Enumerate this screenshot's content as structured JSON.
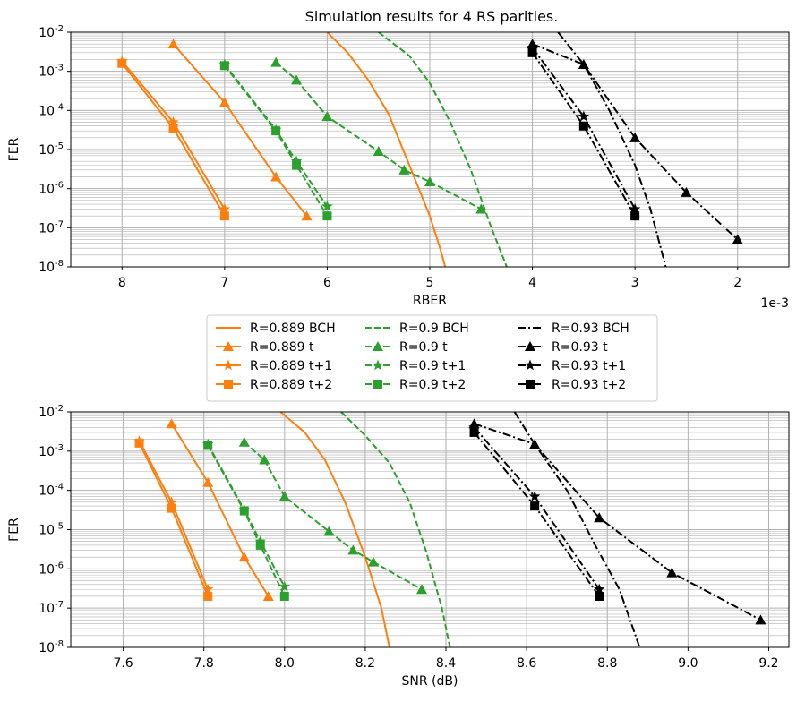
{
  "title": "Simulation results for 4 RS parities.",
  "colors": {
    "orange": "#ff7f0e",
    "green": "#2ca02c",
    "black": "#000000",
    "grid": "#b0b0b0"
  },
  "legend": {
    "placement": "between-panels",
    "entries": [
      {
        "label": "R=0.889 BCH",
        "color": "#ff7f0e",
        "dash": "solid",
        "marker": "none"
      },
      {
        "label": "R=0.889 t",
        "color": "#ff7f0e",
        "dash": "solid",
        "marker": "triangle"
      },
      {
        "label": "R=0.889 t+1",
        "color": "#ff7f0e",
        "dash": "solid",
        "marker": "star"
      },
      {
        "label": "R=0.889 t+2",
        "color": "#ff7f0e",
        "dash": "solid",
        "marker": "square"
      },
      {
        "label": "R=0.9 BCH",
        "color": "#2ca02c",
        "dash": "dashed",
        "marker": "none"
      },
      {
        "label": "R=0.9 t",
        "color": "#2ca02c",
        "dash": "dashed",
        "marker": "triangle"
      },
      {
        "label": "R=0.9 t+1",
        "color": "#2ca02c",
        "dash": "dashed",
        "marker": "star"
      },
      {
        "label": "R=0.9 t+2",
        "color": "#2ca02c",
        "dash": "dashed",
        "marker": "square"
      },
      {
        "label": "R=0.93 BCH",
        "color": "#000000",
        "dash": "dashdot",
        "marker": "none"
      },
      {
        "label": "R=0.93 t",
        "color": "#000000",
        "dash": "dashdot",
        "marker": "triangle"
      },
      {
        "label": "R=0.93 t+1",
        "color": "#000000",
        "dash": "dashdot",
        "marker": "star"
      },
      {
        "label": "R=0.93 t+2",
        "color": "#000000",
        "dash": "dashdot",
        "marker": "square"
      }
    ]
  },
  "chart_data": [
    {
      "type": "line",
      "xlabel": "RBER",
      "ylabel": "FER",
      "x_offset_text": "1e-3",
      "x_scale_note": "x tick values are in units of 1e-3",
      "xlim": [
        8.5,
        1.5
      ],
      "x_inverted": true,
      "ylim": [
        1e-08,
        0.01
      ],
      "yscale": "log",
      "grid": true,
      "xticks": [
        8,
        7,
        6,
        5,
        4,
        3,
        2
      ],
      "xtick_labels": [
        "8",
        "7",
        "6",
        "5",
        "4",
        "3",
        "2"
      ],
      "yticks": [
        1e-08,
        1e-07,
        1e-06,
        1e-05,
        0.0001,
        0.001,
        0.01
      ],
      "ytick_labels": [
        [
          "10",
          "-8"
        ],
        [
          "10",
          "-7"
        ],
        [
          "10",
          "-6"
        ],
        [
          "10",
          "-5"
        ],
        [
          "10",
          "-4"
        ],
        [
          "10",
          "-3"
        ],
        [
          "10",
          "-2"
        ]
      ],
      "series": [
        {
          "name": "R=0.889 BCH",
          "color": "#ff7f0e",
          "dash": "solid",
          "marker": "none",
          "x": [
            6.0,
            5.8,
            5.6,
            5.4,
            5.2,
            5.0,
            4.9,
            4.85
          ],
          "y": [
            0.01,
            0.003,
            0.0006,
            8e-05,
            4e-06,
            2e-07,
            3e-08,
            1e-08
          ]
        },
        {
          "name": "R=0.889 t",
          "color": "#ff7f0e",
          "dash": "solid",
          "marker": "triangle",
          "x": [
            7.5,
            7.0,
            6.5,
            6.2
          ],
          "y": [
            0.005,
            0.00016,
            2e-06,
            2e-07
          ]
        },
        {
          "name": "R=0.889 t+1",
          "color": "#ff7f0e",
          "dash": "solid",
          "marker": "star",
          "x": [
            8.0,
            7.5,
            7.0
          ],
          "y": [
            0.0018,
            5e-05,
            3e-07
          ]
        },
        {
          "name": "R=0.889 t+2",
          "color": "#ff7f0e",
          "dash": "solid",
          "marker": "square",
          "x": [
            8.0,
            7.5,
            7.0
          ],
          "y": [
            0.0016,
            3.5e-05,
            2e-07
          ]
        },
        {
          "name": "R=0.9 BCH",
          "color": "#2ca02c",
          "dash": "dashed",
          "marker": "none",
          "x": [
            5.5,
            5.2,
            5.0,
            4.8,
            4.6,
            4.4,
            4.25
          ],
          "y": [
            0.01,
            0.0025,
            0.0005,
            5e-05,
            3e-06,
            1e-07,
            1e-08
          ]
        },
        {
          "name": "R=0.9 t",
          "color": "#2ca02c",
          "dash": "dashed",
          "marker": "triangle",
          "x": [
            6.5,
            6.3,
            6.0,
            5.5,
            5.25,
            5.0,
            4.5
          ],
          "y": [
            0.0017,
            0.0006,
            7e-05,
            9e-06,
            3e-06,
            1.5e-06,
            3e-07
          ]
        },
        {
          "name": "R=0.9 t+1",
          "color": "#2ca02c",
          "dash": "dashed",
          "marker": "star",
          "x": [
            7.0,
            6.5,
            6.3,
            6.0
          ],
          "y": [
            0.0015,
            3.2e-05,
            5e-06,
            3.5e-07
          ]
        },
        {
          "name": "R=0.9 t+2",
          "color": "#2ca02c",
          "dash": "dashed",
          "marker": "square",
          "x": [
            7.0,
            6.5,
            6.3,
            6.0
          ],
          "y": [
            0.0014,
            3e-05,
            4e-06,
            2e-07
          ]
        },
        {
          "name": "R=0.93 BCH",
          "color": "#000000",
          "dash": "dashdot",
          "marker": "none",
          "x": [
            3.75,
            3.5,
            3.25,
            3.0,
            2.85,
            2.7
          ],
          "y": [
            0.01,
            0.0015,
            0.0001,
            4e-06,
            3e-07,
            1e-08
          ]
        },
        {
          "name": "R=0.93 t",
          "color": "#000000",
          "dash": "dashdot",
          "marker": "triangle",
          "x": [
            4.0,
            3.5,
            3.0,
            2.5,
            2.0
          ],
          "y": [
            0.005,
            0.0015,
            2e-05,
            8e-07,
            5e-08
          ]
        },
        {
          "name": "R=0.93 t+1",
          "color": "#000000",
          "dash": "dashdot",
          "marker": "star",
          "x": [
            4.0,
            3.5,
            3.0
          ],
          "y": [
            0.004,
            7e-05,
            3e-07
          ]
        },
        {
          "name": "R=0.93 t+2",
          "color": "#000000",
          "dash": "dashdot",
          "marker": "square",
          "x": [
            4.0,
            3.5,
            3.0
          ],
          "y": [
            0.003,
            4e-05,
            2e-07
          ]
        }
      ]
    },
    {
      "type": "line",
      "xlabel": "SNR (dB)",
      "ylabel": "FER",
      "xlim": [
        7.47,
        9.25
      ],
      "ylim": [
        1e-08,
        0.01
      ],
      "yscale": "log",
      "grid": true,
      "xticks": [
        7.6,
        7.8,
        8.0,
        8.2,
        8.4,
        8.6,
        8.8,
        9.0,
        9.2
      ],
      "xtick_labels": [
        "7.6",
        "7.8",
        "8.0",
        "8.2",
        "8.4",
        "8.6",
        "8.8",
        "9.0",
        "9.2"
      ],
      "yticks": [
        1e-08,
        1e-07,
        1e-06,
        1e-05,
        0.0001,
        0.001,
        0.01
      ],
      "ytick_labels": [
        [
          "10",
          "-8"
        ],
        [
          "10",
          "-7"
        ],
        [
          "10",
          "-6"
        ],
        [
          "10",
          "-5"
        ],
        [
          "10",
          "-4"
        ],
        [
          "10",
          "-3"
        ],
        [
          "10",
          "-2"
        ]
      ],
      "series": [
        {
          "name": "R=0.889 BCH",
          "color": "#ff7f0e",
          "dash": "solid",
          "marker": "none",
          "x": [
            7.99,
            8.05,
            8.1,
            8.15,
            8.2,
            8.24,
            8.26
          ],
          "y": [
            0.01,
            0.003,
            0.0006,
            5e-05,
            2e-06,
            1e-07,
            1e-08
          ]
        },
        {
          "name": "R=0.889 t",
          "color": "#ff7f0e",
          "dash": "solid",
          "marker": "triangle",
          "x": [
            7.72,
            7.81,
            7.9,
            7.96
          ],
          "y": [
            0.005,
            0.00016,
            2e-06,
            2e-07
          ]
        },
        {
          "name": "R=0.889 t+1",
          "color": "#ff7f0e",
          "dash": "solid",
          "marker": "star",
          "x": [
            7.64,
            7.72,
            7.81
          ],
          "y": [
            0.0018,
            5e-05,
            3e-07
          ]
        },
        {
          "name": "R=0.889 t+2",
          "color": "#ff7f0e",
          "dash": "solid",
          "marker": "square",
          "x": [
            7.64,
            7.72,
            7.81
          ],
          "y": [
            0.0016,
            3.5e-05,
            2e-07
          ]
        },
        {
          "name": "R=0.9 BCH",
          "color": "#2ca02c",
          "dash": "dashed",
          "marker": "none",
          "x": [
            8.14,
            8.2,
            8.26,
            8.31,
            8.35,
            8.39,
            8.41
          ],
          "y": [
            0.01,
            0.0025,
            0.0005,
            5e-05,
            3e-06,
            1e-07,
            1e-08
          ]
        },
        {
          "name": "R=0.9 t",
          "color": "#2ca02c",
          "dash": "dashed",
          "marker": "triangle",
          "x": [
            7.9,
            7.95,
            8.0,
            8.11,
            8.17,
            8.22,
            8.34
          ],
          "y": [
            0.0017,
            0.0006,
            7e-05,
            9e-06,
            3e-06,
            1.5e-06,
            3e-07
          ]
        },
        {
          "name": "R=0.9 t+1",
          "color": "#2ca02c",
          "dash": "dashed",
          "marker": "star",
          "x": [
            7.81,
            7.9,
            7.94,
            8.0
          ],
          "y": [
            0.0015,
            3.2e-05,
            5e-06,
            3.5e-07
          ]
        },
        {
          "name": "R=0.9 t+2",
          "color": "#2ca02c",
          "dash": "dashed",
          "marker": "square",
          "x": [
            7.81,
            7.9,
            7.94,
            8.0
          ],
          "y": [
            0.0014,
            3e-05,
            4e-06,
            2e-07
          ]
        },
        {
          "name": "R=0.93 BCH",
          "color": "#000000",
          "dash": "dashdot",
          "marker": "none",
          "x": [
            8.57,
            8.62,
            8.7,
            8.77,
            8.83,
            8.88
          ],
          "y": [
            0.01,
            0.0015,
            0.0001,
            4e-06,
            3e-07,
            1e-08
          ]
        },
        {
          "name": "R=0.93 t",
          "color": "#000000",
          "dash": "dashdot",
          "marker": "triangle",
          "x": [
            8.47,
            8.62,
            8.78,
            8.96,
            9.18
          ],
          "y": [
            0.005,
            0.0015,
            2e-05,
            8e-07,
            5e-08
          ]
        },
        {
          "name": "R=0.93 t+1",
          "color": "#000000",
          "dash": "dashdot",
          "marker": "star",
          "x": [
            8.47,
            8.62,
            8.78
          ],
          "y": [
            0.004,
            7e-05,
            3e-07
          ]
        },
        {
          "name": "R=0.93 t+2",
          "color": "#000000",
          "dash": "dashdot",
          "marker": "square",
          "x": [
            8.47,
            8.62,
            8.78
          ],
          "y": [
            0.003,
            4e-05,
            2e-07
          ]
        }
      ]
    }
  ]
}
